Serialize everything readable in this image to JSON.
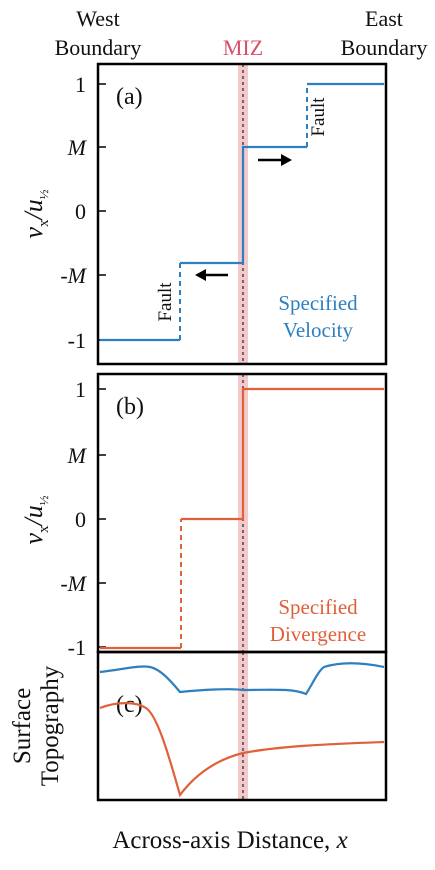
{
  "header": {
    "west_line1": "West",
    "west_line2": "Boundary",
    "miz": "MIZ",
    "east_line1": "East",
    "east_line2": "Boundary"
  },
  "colors": {
    "velocity": "#2c7fc0",
    "divergence": "#e0603a",
    "miz": "#f4c9cc",
    "miz_text": "#d9506a",
    "axis": "#000000"
  },
  "panel_a": {
    "label": "(a)",
    "ticks": [
      "1",
      "M",
      "0",
      "-M",
      "-1"
    ],
    "fault_label": "Fault",
    "annotation_line1": "Specified",
    "annotation_line2": "Velocity"
  },
  "panel_b": {
    "label": "(b)",
    "ticks": [
      "1",
      "M",
      "0",
      "-M",
      "-1"
    ],
    "annotation_line1": "Specified",
    "annotation_line2": "Divergence"
  },
  "panel_c": {
    "label": "(c)",
    "ylabel_line1": "Surface",
    "ylabel_line2": "Topography"
  },
  "xlabel": "Across-axis Distance, x",
  "chart_data": [
    {
      "type": "line",
      "panel": "a",
      "series": [
        {
          "x": [
            0,
            0.25,
            0.25,
            0.5,
            0.5,
            0.73,
            0.73,
            1.0
          ],
          "y": [
            -1,
            -1,
            -0.55,
            -0.55,
            0.55,
            0.55,
            1,
            1
          ],
          "dashed_segments": [
            1,
            5
          ]
        }
      ],
      "ylim": [
        -1.1,
        1.1
      ]
    },
    {
      "type": "line",
      "panel": "b",
      "series": [
        {
          "x": [
            0,
            0.29,
            0.29,
            0.5,
            0.5,
            1.0
          ],
          "y": [
            -1,
            -1,
            0,
            0,
            1,
            1
          ],
          "dashed_segments": [
            1
          ]
        }
      ],
      "ylim": [
        -1.1,
        1.1
      ]
    },
    {
      "type": "line",
      "panel": "c",
      "series": [
        {
          "x": [
            0,
            0.08,
            0.18,
            0.29,
            0.4,
            0.55,
            0.73,
            0.78,
            0.84,
            0.92,
            1.0
          ],
          "y": [
            0.78,
            0.8,
            0.83,
            0.68,
            0.7,
            0.71,
            0.68,
            0.85,
            0.87,
            0.86,
            0.85
          ]
        },
        {
          "x": [
            0,
            0.05,
            0.12,
            0.2,
            0.29,
            0.35,
            0.45,
            0.6,
            0.8,
            1.0
          ],
          "y": [
            0.48,
            0.51,
            0.5,
            0.35,
            0.04,
            0.18,
            0.26,
            0.31,
            0.33,
            0.35
          ]
        }
      ],
      "ylim": [
        0,
        1
      ]
    }
  ]
}
